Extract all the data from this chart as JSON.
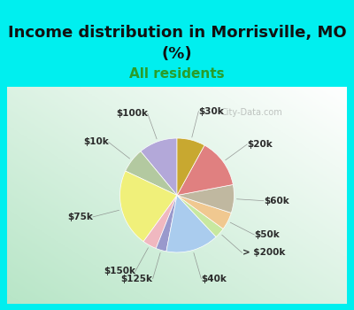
{
  "title_line1": "Income distribution in Morrisville, MO",
  "title_line2": "(%)",
  "subtitle": "All residents",
  "title_color": "#111111",
  "subtitle_color": "#2a9d2a",
  "bg_cyan": "#00EFEF",
  "watermark": "City-Data.com",
  "labels": [
    "$100k",
    "$10k",
    "$75k",
    "$150k",
    "$125k",
    "$40k",
    "> $200k",
    "$50k",
    "$60k",
    "$20k",
    "$30k"
  ],
  "values": [
    11,
    7,
    22,
    4,
    3,
    15,
    3,
    5,
    8,
    14,
    8
  ],
  "colors": [
    "#b3a8d9",
    "#b3c9a0",
    "#f0f07a",
    "#f0b8c0",
    "#9999cc",
    "#aaccee",
    "#c8e8a0",
    "#f0c890",
    "#c0b8a0",
    "#e08080",
    "#c8a830"
  ],
  "startangle": 90,
  "label_fontsize": 7.5,
  "title_fontsize": 13,
  "subtitle_fontsize": 11
}
